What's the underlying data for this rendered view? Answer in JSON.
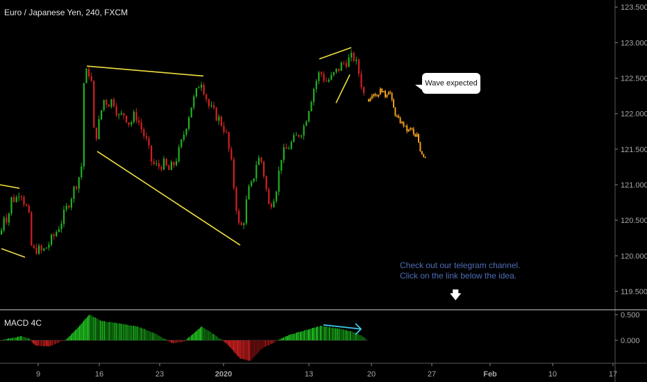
{
  "header": {
    "title": "Euro / Japanese Yen, 240, FXCM"
  },
  "macd": {
    "label": "MACD 4C"
  },
  "annotations": {
    "callout": "Wave expected",
    "promo_line1": "Check out our telegram channel.",
    "promo_line2": "Click on the link below the idea.",
    "arrow_icon": "down-arrow-icon"
  },
  "colors": {
    "background": "#000000",
    "up": "#22b022",
    "down": "#d42020",
    "forecast": "#f5a020",
    "trendline": "#f0e040",
    "macd_arrow": "#3ec8e8",
    "axis_text": "#a8a8a8"
  },
  "chart_data": [
    {
      "type": "candlestick",
      "title": "Euro / Japanese Yen, 240, FXCM",
      "x_ticks": [
        "9",
        "16",
        "23",
        "2020",
        "13",
        "20",
        "27",
        "Feb",
        "10",
        "17"
      ],
      "y_ticks": [
        "123.500",
        "123.000",
        "122.500",
        "122.000",
        "121.500",
        "121.000",
        "120.500",
        "120.000",
        "119.500"
      ],
      "ylim": [
        119.25,
        123.6
      ],
      "price_path": [
        {
          "x": 0,
          "y": 120.3
        },
        {
          "x": 5,
          "y": 120.6
        },
        {
          "x": 10,
          "y": 120.5
        },
        {
          "x": 15,
          "y": 120.8
        },
        {
          "x": 22,
          "y": 120.8
        },
        {
          "x": 28,
          "y": 120.95
        },
        {
          "x": 34,
          "y": 120.75
        },
        {
          "x": 40,
          "y": 120.6
        },
        {
          "x": 45,
          "y": 120.05
        },
        {
          "x": 52,
          "y": 120.1
        },
        {
          "x": 60,
          "y": 120.05
        },
        {
          "x": 68,
          "y": 120.15
        },
        {
          "x": 78,
          "y": 120.3
        },
        {
          "x": 88,
          "y": 120.5
        },
        {
          "x": 98,
          "y": 120.75
        },
        {
          "x": 108,
          "y": 121.0
        },
        {
          "x": 116,
          "y": 121.2
        },
        {
          "x": 120,
          "y": 122.5
        },
        {
          "x": 125,
          "y": 122.6
        },
        {
          "x": 130,
          "y": 122.55
        },
        {
          "x": 135,
          "y": 121.6
        },
        {
          "x": 140,
          "y": 121.8
        },
        {
          "x": 148,
          "y": 122.2
        },
        {
          "x": 155,
          "y": 122.15
        },
        {
          "x": 162,
          "y": 122.2
        },
        {
          "x": 170,
          "y": 121.95
        },
        {
          "x": 178,
          "y": 122.0
        },
        {
          "x": 186,
          "y": 121.85
        },
        {
          "x": 194,
          "y": 122.0
        },
        {
          "x": 202,
          "y": 121.8
        },
        {
          "x": 210,
          "y": 121.6
        },
        {
          "x": 218,
          "y": 121.3
        },
        {
          "x": 226,
          "y": 121.25
        },
        {
          "x": 234,
          "y": 121.3
        },
        {
          "x": 242,
          "y": 121.2
        },
        {
          "x": 250,
          "y": 121.3
        },
        {
          "x": 258,
          "y": 121.5
        },
        {
          "x": 266,
          "y": 121.8
        },
        {
          "x": 274,
          "y": 122.1
        },
        {
          "x": 282,
          "y": 122.3
        },
        {
          "x": 288,
          "y": 122.5
        },
        {
          "x": 294,
          "y": 122.3
        },
        {
          "x": 300,
          "y": 122.1
        },
        {
          "x": 308,
          "y": 122.0
        },
        {
          "x": 316,
          "y": 121.9
        },
        {
          "x": 324,
          "y": 121.75
        },
        {
          "x": 332,
          "y": 121.3
        },
        {
          "x": 338,
          "y": 120.8
        },
        {
          "x": 344,
          "y": 120.35
        },
        {
          "x": 350,
          "y": 120.5
        },
        {
          "x": 356,
          "y": 120.9
        },
        {
          "x": 362,
          "y": 121.0
        },
        {
          "x": 368,
          "y": 121.3
        },
        {
          "x": 374,
          "y": 121.4
        },
        {
          "x": 380,
          "y": 121.1
        },
        {
          "x": 386,
          "y": 120.7
        },
        {
          "x": 392,
          "y": 120.8
        },
        {
          "x": 398,
          "y": 121.0
        },
        {
          "x": 404,
          "y": 121.4
        },
        {
          "x": 412,
          "y": 121.5
        },
        {
          "x": 420,
          "y": 121.6
        },
        {
          "x": 428,
          "y": 121.7
        },
        {
          "x": 436,
          "y": 121.8
        },
        {
          "x": 444,
          "y": 122.1
        },
        {
          "x": 452,
          "y": 122.4
        },
        {
          "x": 460,
          "y": 122.6
        },
        {
          "x": 468,
          "y": 122.45
        },
        {
          "x": 476,
          "y": 122.5
        },
        {
          "x": 484,
          "y": 122.6
        },
        {
          "x": 492,
          "y": 122.7
        },
        {
          "x": 500,
          "y": 122.75
        },
        {
          "x": 508,
          "y": 122.8
        },
        {
          "x": 514,
          "y": 122.65
        },
        {
          "x": 520,
          "y": 122.4
        },
        {
          "x": 526,
          "y": 122.15
        }
      ],
      "forecast_path": [
        {
          "x": 530,
          "y": 122.2
        },
        {
          "x": 536,
          "y": 122.3
        },
        {
          "x": 542,
          "y": 122.25
        },
        {
          "x": 548,
          "y": 122.35
        },
        {
          "x": 554,
          "y": 122.25
        },
        {
          "x": 560,
          "y": 122.35
        },
        {
          "x": 564,
          "y": 122.15
        },
        {
          "x": 568,
          "y": 122.0
        },
        {
          "x": 574,
          "y": 121.9
        },
        {
          "x": 580,
          "y": 121.85
        },
        {
          "x": 586,
          "y": 121.75
        },
        {
          "x": 592,
          "y": 121.8
        },
        {
          "x": 596,
          "y": 121.65
        },
        {
          "x": 600,
          "y": 121.7
        },
        {
          "x": 604,
          "y": 121.5
        },
        {
          "x": 608,
          "y": 121.42
        },
        {
          "x": 612,
          "y": 121.4
        }
      ],
      "trendlines": [
        {
          "from": {
            "x": 0,
            "y": 121.0
          },
          "to": {
            "x": 28,
            "y": 120.95
          }
        },
        {
          "from": {
            "x": 2,
            "y": 120.1
          },
          "to": {
            "x": 36,
            "y": 119.98
          }
        },
        {
          "from": {
            "x": 125,
            "y": 122.67
          },
          "to": {
            "x": 293,
            "y": 122.53
          }
        },
        {
          "from": {
            "x": 140,
            "y": 121.47
          },
          "to": {
            "x": 346,
            "y": 120.15
          }
        },
        {
          "from": {
            "x": 460,
            "y": 122.77
          },
          "to": {
            "x": 506,
            "y": 122.93
          }
        },
        {
          "from": {
            "x": 484,
            "y": 122.15
          },
          "to": {
            "x": 504,
            "y": 122.55
          }
        }
      ]
    },
    {
      "type": "histogram",
      "title": "MACD 4C",
      "y_ticks": [
        "0.500",
        "0.000"
      ],
      "ylim": [
        -0.55,
        0.65
      ],
      "profile": [
        {
          "x": 0,
          "y": 0.0
        },
        {
          "x": 30,
          "y": 0.08
        },
        {
          "x": 42,
          "y": 0.03
        },
        {
          "x": 50,
          "y": -0.1
        },
        {
          "x": 70,
          "y": -0.12
        },
        {
          "x": 95,
          "y": 0.02
        },
        {
          "x": 112,
          "y": 0.25
        },
        {
          "x": 128,
          "y": 0.5
        },
        {
          "x": 145,
          "y": 0.38
        },
        {
          "x": 175,
          "y": 0.32
        },
        {
          "x": 200,
          "y": 0.26
        },
        {
          "x": 225,
          "y": 0.12
        },
        {
          "x": 248,
          "y": -0.06
        },
        {
          "x": 265,
          "y": -0.02
        },
        {
          "x": 290,
          "y": 0.27
        },
        {
          "x": 305,
          "y": 0.14
        },
        {
          "x": 325,
          "y": -0.05
        },
        {
          "x": 345,
          "y": -0.35
        },
        {
          "x": 360,
          "y": -0.4
        },
        {
          "x": 378,
          "y": -0.15
        },
        {
          "x": 396,
          "y": -0.03
        },
        {
          "x": 415,
          "y": 0.1
        },
        {
          "x": 440,
          "y": 0.2
        },
        {
          "x": 462,
          "y": 0.28
        },
        {
          "x": 490,
          "y": 0.22
        },
        {
          "x": 510,
          "y": 0.16
        },
        {
          "x": 526,
          "y": 0.05
        }
      ],
      "arrow": {
        "from": {
          "x": 466,
          "y": 0.3
        },
        "to": {
          "x": 520,
          "y": 0.22
        }
      }
    }
  ]
}
